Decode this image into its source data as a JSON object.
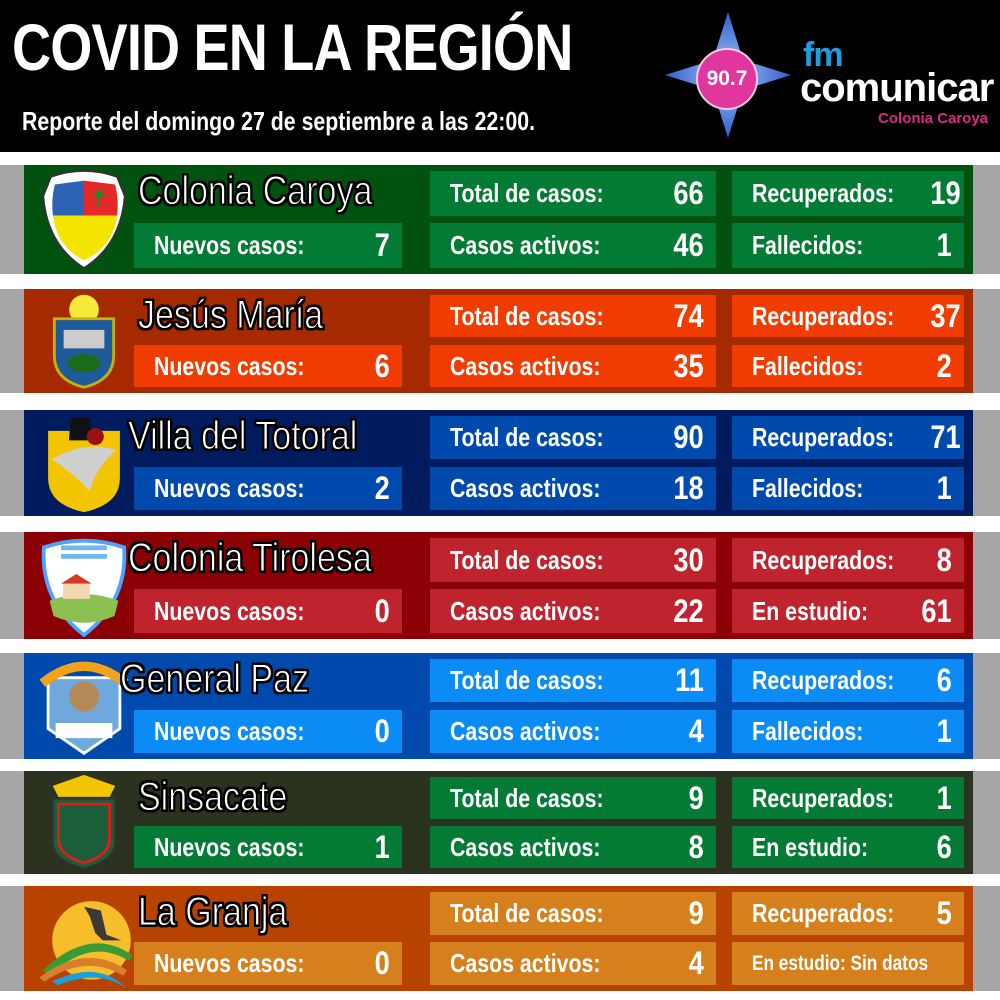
{
  "header": {
    "title": "COVID EN LA REGIÓN",
    "subtitle": "Reporte del domingo 27 de septiembre a las 22:00.",
    "logo": {
      "frequency": "90.7",
      "fm": "fm",
      "brand": "comunicar",
      "location": "Colonia Caroya",
      "colors": {
        "star": "#3a6fd1",
        "circle": "#e0369e",
        "fm": "#1d9ee0",
        "location": "#d92a87"
      }
    }
  },
  "labels": {
    "new_cases": "Nuevos casos:",
    "total_cases": "Total de casos:",
    "active_cases": "Casos activos:",
    "recovered": "Recuperados:",
    "deaths": "Fallecidos:",
    "under_study": "En estudio:"
  },
  "regions": [
    {
      "name": "Colonia Caroya",
      "crest_icon": "colonia-caroya-crest-icon",
      "panel_color": "#00520e",
      "box_color": "#037b34",
      "new_cases": "7",
      "total_cases": "66",
      "active_cases": "46",
      "recovered": "19",
      "last_label": "Fallecidos:",
      "last_value": "1"
    },
    {
      "name": "Jesús María",
      "crest_icon": "jesus-maria-crest-icon",
      "panel_color": "#a52a00",
      "box_color": "#f03c00",
      "new_cases": "6",
      "total_cases": "74",
      "active_cases": "35",
      "recovered": "37",
      "last_label": "Fallecidos:",
      "last_value": "2"
    },
    {
      "name": "Villa del Totoral",
      "crest_icon": "villa-del-totoral-crest-icon",
      "panel_color": "#001c5e",
      "box_color": "#0049ad",
      "new_cases": "2",
      "total_cases": "90",
      "active_cases": "18",
      "recovered": "71",
      "last_label": "Fallecidos:",
      "last_value": "1"
    },
    {
      "name": "Colonia Tirolesa",
      "crest_icon": "colonia-tirolesa-crest-icon",
      "panel_color": "#8b0005",
      "box_color": "#bf232e",
      "new_cases": "0",
      "total_cases": "30",
      "active_cases": "22",
      "recovered": "8",
      "last_label": "En estudio:",
      "last_value": "61"
    },
    {
      "name": "General Paz",
      "crest_icon": "general-paz-crest-icon",
      "panel_color": "#004aad",
      "box_color": "#0a8bf5",
      "new_cases": "0",
      "total_cases": "11",
      "active_cases": "4",
      "recovered": "6",
      "last_label": "Fallecidos:",
      "last_value": "1"
    },
    {
      "name": "Sinsacate",
      "crest_icon": "sinsacate-crest-icon",
      "panel_color": "#2b3220",
      "box_color": "#037b34",
      "new_cases": "1",
      "total_cases": "9",
      "active_cases": "8",
      "recovered": "1",
      "last_label": "En estudio:",
      "last_value": "6"
    },
    {
      "name": "La Granja",
      "crest_icon": "la-granja-crest-icon",
      "panel_color": "#b84300",
      "box_color": "#d5801c",
      "new_cases": "0",
      "total_cases": "9",
      "active_cases": "4",
      "recovered": "5",
      "last_label": "En estudio: Sin datos",
      "last_value": ""
    }
  ]
}
